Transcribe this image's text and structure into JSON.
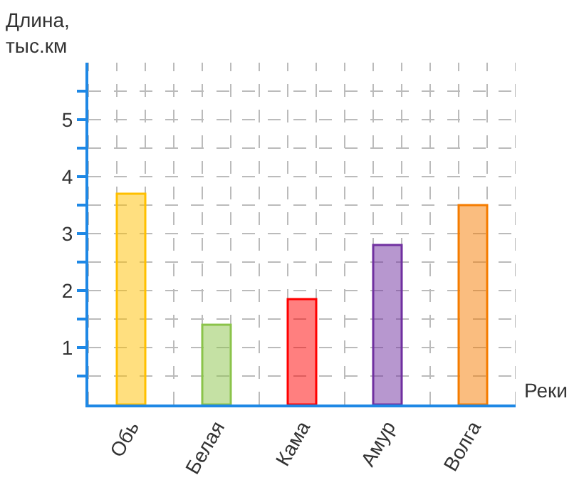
{
  "chart_data": {
    "type": "bar",
    "ylabel": "Длина,\nтыс.км",
    "xlabel": "Реки",
    "categories": [
      "Обь",
      "Белая",
      "Кама",
      "Амур",
      "Волга"
    ],
    "values": [
      3.7,
      1.4,
      1.85,
      2.8,
      3.5
    ],
    "colors": [
      "#ffc000",
      "#8bc34a",
      "#ff0000",
      "#7030a0",
      "#f57c00"
    ],
    "ylim": [
      0,
      6
    ],
    "yticks": [
      {
        "value": 0.5,
        "label": null
      },
      1,
      {
        "value": 1.5,
        "label": null
      },
      2,
      {
        "value": 2.5,
        "label": null
      },
      3,
      {
        "value": 3.5,
        "label": null
      },
      4,
      {
        "value": 4.5,
        "label": null
      },
      5,
      {
        "value": 5.5,
        "label": null
      }
    ],
    "grid": true
  }
}
